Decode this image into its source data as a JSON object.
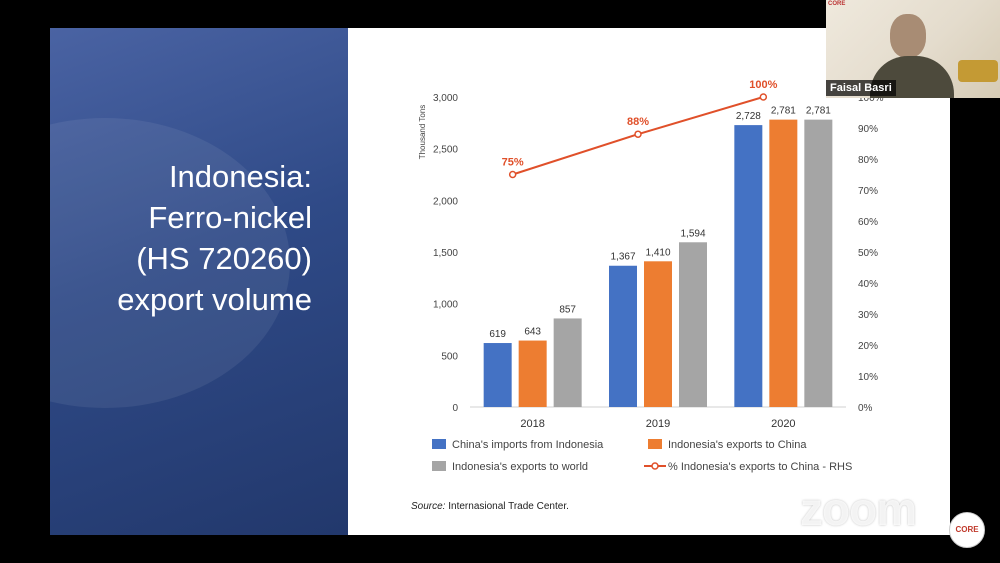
{
  "slide": {
    "title_lines": [
      "Indonesia:",
      "Ferro-nickel",
      "(HS 720260)",
      "export volume"
    ],
    "source_label": "Source:",
    "source_text": " Internasional Trade Center."
  },
  "chart_data": {
    "type": "bar",
    "categories": [
      "2018",
      "2019",
      "2020"
    ],
    "ylabel": "Thousand Tons",
    "ylim": [
      0,
      3000
    ],
    "yticks": [
      "0",
      "500",
      "1,000",
      "1,500",
      "2,000",
      "2,500",
      "3,000"
    ],
    "y2lim": [
      0,
      100
    ],
    "y2ticks": [
      "0%",
      "10%",
      "20%",
      "30%",
      "40%",
      "50%",
      "60%",
      "70%",
      "80%",
      "90%",
      "100%"
    ],
    "series": [
      {
        "name": "China's imports from Indonesia",
        "values": [
          619,
          1367,
          2728
        ],
        "labels": [
          "619",
          "1,367",
          "2,728"
        ],
        "color": "#4472c4"
      },
      {
        "name": "Indonesia's exports to China",
        "values": [
          643,
          1410,
          2781
        ],
        "labels": [
          "643",
          "1,410",
          "2,781"
        ],
        "color": "#ed7d31"
      },
      {
        "name": "Indonesia's exports to world",
        "values": [
          857,
          1594,
          2781
        ],
        "labels": [
          "857",
          "1,594",
          "2,781"
        ],
        "color": "#a5a5a5"
      }
    ],
    "line_series": {
      "name": "% Indonesia's exports to China - RHS",
      "values": [
        75,
        88,
        100
      ],
      "labels": [
        "75%",
        "88%",
        "100%"
      ],
      "color": "#e0502a"
    },
    "legend_position": "bottom"
  },
  "webcam": {
    "participant_name": "Faisal Basri",
    "logo_text": "CORE"
  },
  "app": {
    "zoom_label": "zoom",
    "badge_text": "CORE"
  }
}
